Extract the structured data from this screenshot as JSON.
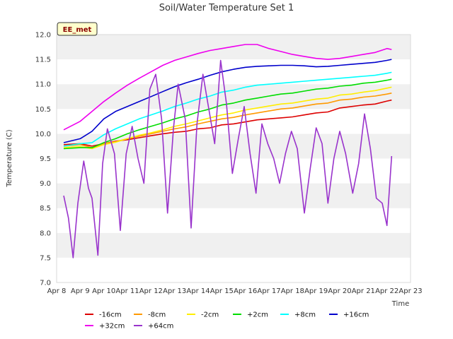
{
  "chart_data": {
    "type": "line",
    "title": "Soil/Water Temperature Set 1",
    "xlabel": "Time",
    "ylabel": "Temperature (C)",
    "badge": "EE_met",
    "x_ticks": [
      "Apr 8",
      "Apr 9",
      "Apr 10",
      "Apr 11",
      "Apr 12",
      "Apr 13",
      "Apr 14",
      "Apr 15",
      "Apr 16",
      "Apr 17",
      "Apr 18",
      "Apr 19",
      "Apr 20",
      "Apr 21",
      "Apr 22",
      "Apr 23"
    ],
    "xlim": [
      0,
      15
    ],
    "ylim": [
      7.0,
      12.0
    ],
    "y_ticks": [
      "7.0",
      "7.5",
      "8.0",
      "8.5",
      "9.0",
      "9.5",
      "10.0",
      "10.5",
      "11.0",
      "11.5",
      "12.0"
    ],
    "grid": "alternating horizontal bands",
    "legend_position": "bottom",
    "series": [
      {
        "name": "-16cm",
        "color": "#dd0000",
        "x": [
          0.3,
          1.0,
          1.5,
          2.0,
          2.5,
          3.0,
          3.5,
          4.0,
          4.5,
          5.0,
          5.5,
          6.0,
          6.5,
          7.0,
          7.5,
          8.0,
          8.5,
          9.0,
          9.5,
          10.0,
          10.5,
          11.0,
          11.5,
          12.0,
          12.5,
          13.0,
          13.5,
          14.0,
          14.2
        ],
        "y": [
          9.78,
          9.8,
          9.75,
          9.8,
          9.85,
          9.88,
          9.92,
          9.96,
          10.0,
          10.03,
          10.05,
          10.1,
          10.12,
          10.18,
          10.2,
          10.24,
          10.28,
          10.3,
          10.32,
          10.34,
          10.38,
          10.42,
          10.44,
          10.52,
          10.55,
          10.58,
          10.6,
          10.66,
          10.68
        ]
      },
      {
        "name": "-8cm",
        "color": "#ff9900",
        "x": [
          0.3,
          1.0,
          1.5,
          2.0,
          2.5,
          3.0,
          3.5,
          4.0,
          4.5,
          5.0,
          5.5,
          6.0,
          6.5,
          7.0,
          7.5,
          8.0,
          8.5,
          9.0,
          9.5,
          10.0,
          10.5,
          11.0,
          11.5,
          12.0,
          12.5,
          13.0,
          13.5,
          14.0,
          14.2
        ],
        "y": [
          9.75,
          9.78,
          9.72,
          9.8,
          9.84,
          9.9,
          9.95,
          10.0,
          10.05,
          10.1,
          10.14,
          10.2,
          10.25,
          10.3,
          10.33,
          10.38,
          10.42,
          10.46,
          10.5,
          10.52,
          10.56,
          10.6,
          10.62,
          10.68,
          10.7,
          10.74,
          10.76,
          10.8,
          10.82
        ]
      },
      {
        "name": "-2cm",
        "color": "#ffee00",
        "x": [
          0.3,
          1.0,
          1.5,
          2.0,
          2.5,
          3.0,
          3.5,
          4.0,
          4.5,
          5.0,
          5.5,
          6.0,
          6.5,
          7.0,
          7.5,
          8.0,
          8.5,
          9.0,
          9.5,
          10.0,
          10.5,
          11.0,
          11.5,
          12.0,
          12.5,
          13.0,
          13.5,
          14.0,
          14.2
        ],
        "y": [
          9.72,
          9.74,
          9.7,
          9.78,
          9.83,
          9.9,
          9.97,
          10.02,
          10.08,
          10.15,
          10.2,
          10.26,
          10.32,
          10.38,
          10.42,
          10.48,
          10.52,
          10.56,
          10.6,
          10.62,
          10.66,
          10.7,
          10.72,
          10.78,
          10.8,
          10.84,
          10.87,
          10.92,
          10.94
        ]
      },
      {
        "name": "+2cm",
        "color": "#00dd00",
        "x": [
          0.3,
          1.0,
          1.5,
          2.0,
          2.5,
          3.0,
          3.5,
          4.0,
          4.5,
          5.0,
          5.5,
          6.0,
          6.5,
          7.0,
          7.5,
          8.0,
          8.5,
          9.0,
          9.5,
          10.0,
          10.5,
          11.0,
          11.5,
          12.0,
          12.5,
          13.0,
          13.5,
          14.0,
          14.2
        ],
        "y": [
          9.7,
          9.72,
          9.72,
          9.82,
          9.9,
          10.0,
          10.08,
          10.15,
          10.22,
          10.3,
          10.36,
          10.44,
          10.5,
          10.58,
          10.62,
          10.68,
          10.72,
          10.76,
          10.8,
          10.82,
          10.86,
          10.9,
          10.92,
          10.96,
          10.98,
          11.02,
          11.04,
          11.08,
          11.1
        ]
      },
      {
        "name": "+8cm",
        "color": "#00ffff",
        "x": [
          0.3,
          1.0,
          1.5,
          2.0,
          2.5,
          3.0,
          3.5,
          4.0,
          4.5,
          5.0,
          5.5,
          6.0,
          6.5,
          7.0,
          7.5,
          8.0,
          8.5,
          9.0,
          9.5,
          10.0,
          10.5,
          11.0,
          11.5,
          12.0,
          12.5,
          13.0,
          13.5,
          14.0,
          14.2
        ],
        "y": [
          9.75,
          9.8,
          9.82,
          9.98,
          10.1,
          10.2,
          10.3,
          10.38,
          10.46,
          10.55,
          10.62,
          10.7,
          10.76,
          10.84,
          10.88,
          10.94,
          10.98,
          11.0,
          11.02,
          11.04,
          11.06,
          11.08,
          11.1,
          11.12,
          11.14,
          11.16,
          11.18,
          11.22,
          11.24
        ]
      },
      {
        "name": "+16cm",
        "color": "#0000cc",
        "x": [
          0.3,
          1.0,
          1.5,
          2.0,
          2.5,
          3.0,
          3.5,
          4.0,
          4.5,
          5.0,
          5.5,
          6.0,
          6.5,
          7.0,
          7.5,
          8.0,
          8.5,
          9.0,
          9.5,
          10.0,
          10.5,
          11.0,
          11.5,
          12.0,
          12.5,
          13.0,
          13.5,
          14.0,
          14.2
        ],
        "y": [
          9.82,
          9.9,
          10.05,
          10.3,
          10.45,
          10.55,
          10.65,
          10.75,
          10.85,
          10.95,
          11.03,
          11.1,
          11.18,
          11.25,
          11.3,
          11.34,
          11.36,
          11.37,
          11.38,
          11.38,
          11.37,
          11.35,
          11.36,
          11.38,
          11.4,
          11.42,
          11.44,
          11.48,
          11.5
        ]
      },
      {
        "name": "+32cm",
        "color": "#ee00ee",
        "x": [
          0.3,
          1.0,
          1.5,
          2.0,
          2.5,
          3.0,
          3.5,
          4.0,
          4.5,
          5.0,
          5.5,
          6.0,
          6.5,
          7.0,
          7.5,
          8.0,
          8.5,
          9.0,
          9.5,
          10.0,
          10.5,
          11.0,
          11.5,
          12.0,
          12.5,
          13.0,
          13.5,
          14.0,
          14.2
        ],
        "y": [
          10.08,
          10.25,
          10.45,
          10.65,
          10.82,
          10.98,
          11.12,
          11.25,
          11.38,
          11.48,
          11.55,
          11.62,
          11.68,
          11.72,
          11.76,
          11.8,
          11.8,
          11.72,
          11.66,
          11.6,
          11.56,
          11.52,
          11.5,
          11.52,
          11.56,
          11.6,
          11.64,
          11.72,
          11.7
        ]
      },
      {
        "name": "+64cm",
        "color": "#9933cc",
        "x": [
          0.3,
          0.5,
          0.7,
          0.9,
          1.15,
          1.35,
          1.5,
          1.75,
          1.95,
          2.15,
          2.45,
          2.7,
          2.95,
          3.2,
          3.45,
          3.7,
          3.95,
          4.2,
          4.45,
          4.7,
          4.95,
          5.15,
          5.45,
          5.7,
          5.95,
          6.2,
          6.45,
          6.7,
          6.95,
          7.2,
          7.45,
          7.7,
          7.95,
          8.2,
          8.45,
          8.7,
          8.95,
          9.2,
          9.45,
          9.7,
          9.95,
          10.2,
          10.5,
          10.75,
          11.0,
          11.25,
          11.5,
          11.75,
          12.0,
          12.25,
          12.55,
          12.8,
          13.05,
          13.3,
          13.55,
          13.8,
          14.0,
          14.2
        ],
        "y": [
          8.75,
          8.3,
          7.5,
          8.6,
          9.45,
          8.9,
          8.7,
          7.55,
          9.4,
          10.1,
          9.6,
          8.05,
          9.6,
          10.15,
          9.5,
          9.0,
          10.9,
          11.2,
          10.3,
          8.4,
          10.1,
          11.0,
          10.3,
          8.1,
          10.2,
          11.2,
          10.5,
          9.8,
          11.48,
          10.6,
          9.2,
          9.9,
          10.55,
          9.6,
          8.8,
          10.2,
          9.8,
          9.5,
          9.0,
          9.6,
          10.05,
          9.7,
          8.4,
          9.3,
          10.12,
          9.8,
          8.6,
          9.5,
          10.05,
          9.6,
          8.8,
          9.4,
          10.4,
          9.7,
          8.7,
          8.6,
          8.15,
          9.55
        ]
      }
    ]
  }
}
